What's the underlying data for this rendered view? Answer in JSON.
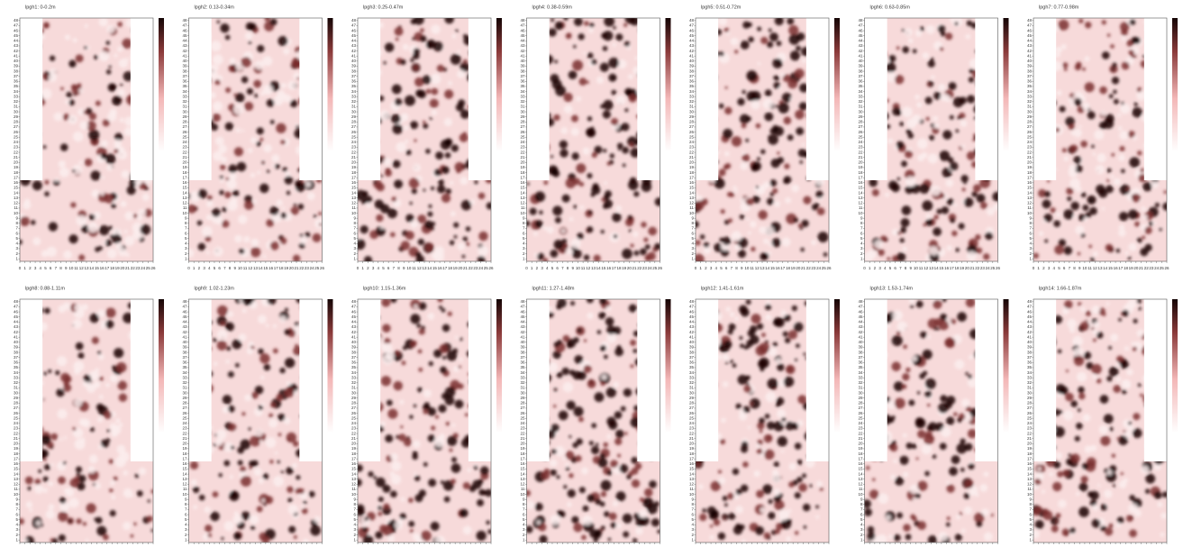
{
  "panels": [
    {
      "title": "lpgh1: 0-0.2m"
    },
    {
      "title": "lpgh2: 0.13-0.34m"
    },
    {
      "title": "lpgh3: 0.25-0.47m"
    },
    {
      "title": "lpgh4: 0.38-0.59m"
    },
    {
      "title": "lpgh5: 0.51-0.72m"
    },
    {
      "title": "lpgh6: 0.63-0.85m"
    },
    {
      "title": "lpgh7: 0.77-0.98m"
    },
    {
      "title": "lpgh8: 0.88-1.11m"
    },
    {
      "title": "lpgh9: 1.02-1.23m"
    },
    {
      "title": "lpgh10: 1.15-1.36m"
    },
    {
      "title": "lpgh11: 1.27-1.48m"
    },
    {
      "title": "lpgh12: 1.41-1.61m"
    },
    {
      "title": "lpgh13: 1.53-1.74m"
    },
    {
      "title": "lpgh14: 1.66-1.87m"
    }
  ],
  "y_tick_labels": [
    "1",
    "2",
    "3",
    "4",
    "5",
    "6",
    "7",
    "8",
    "9",
    "10",
    "11",
    "12",
    "13",
    "14",
    "15",
    "16",
    "17",
    "18",
    "19",
    "20",
    "21",
    "22",
    "23",
    "24",
    "25",
    "26",
    "27",
    "28",
    "29",
    "30",
    "31",
    "32",
    "33",
    "34",
    "35",
    "36",
    "37",
    "38",
    "39",
    "40",
    "41",
    "42",
    "43",
    "44",
    "45",
    "46",
    "47",
    "48"
  ],
  "x_tick_labels": [
    "0",
    "1",
    "2",
    "3",
    "4",
    "5",
    "6",
    "7",
    "8",
    "9",
    "10",
    "11",
    "12",
    "13",
    "14",
    "15",
    "16",
    "17",
    "18",
    "19",
    "20",
    "21",
    "22",
    "23",
    "24",
    "25",
    "26"
  ]
}
